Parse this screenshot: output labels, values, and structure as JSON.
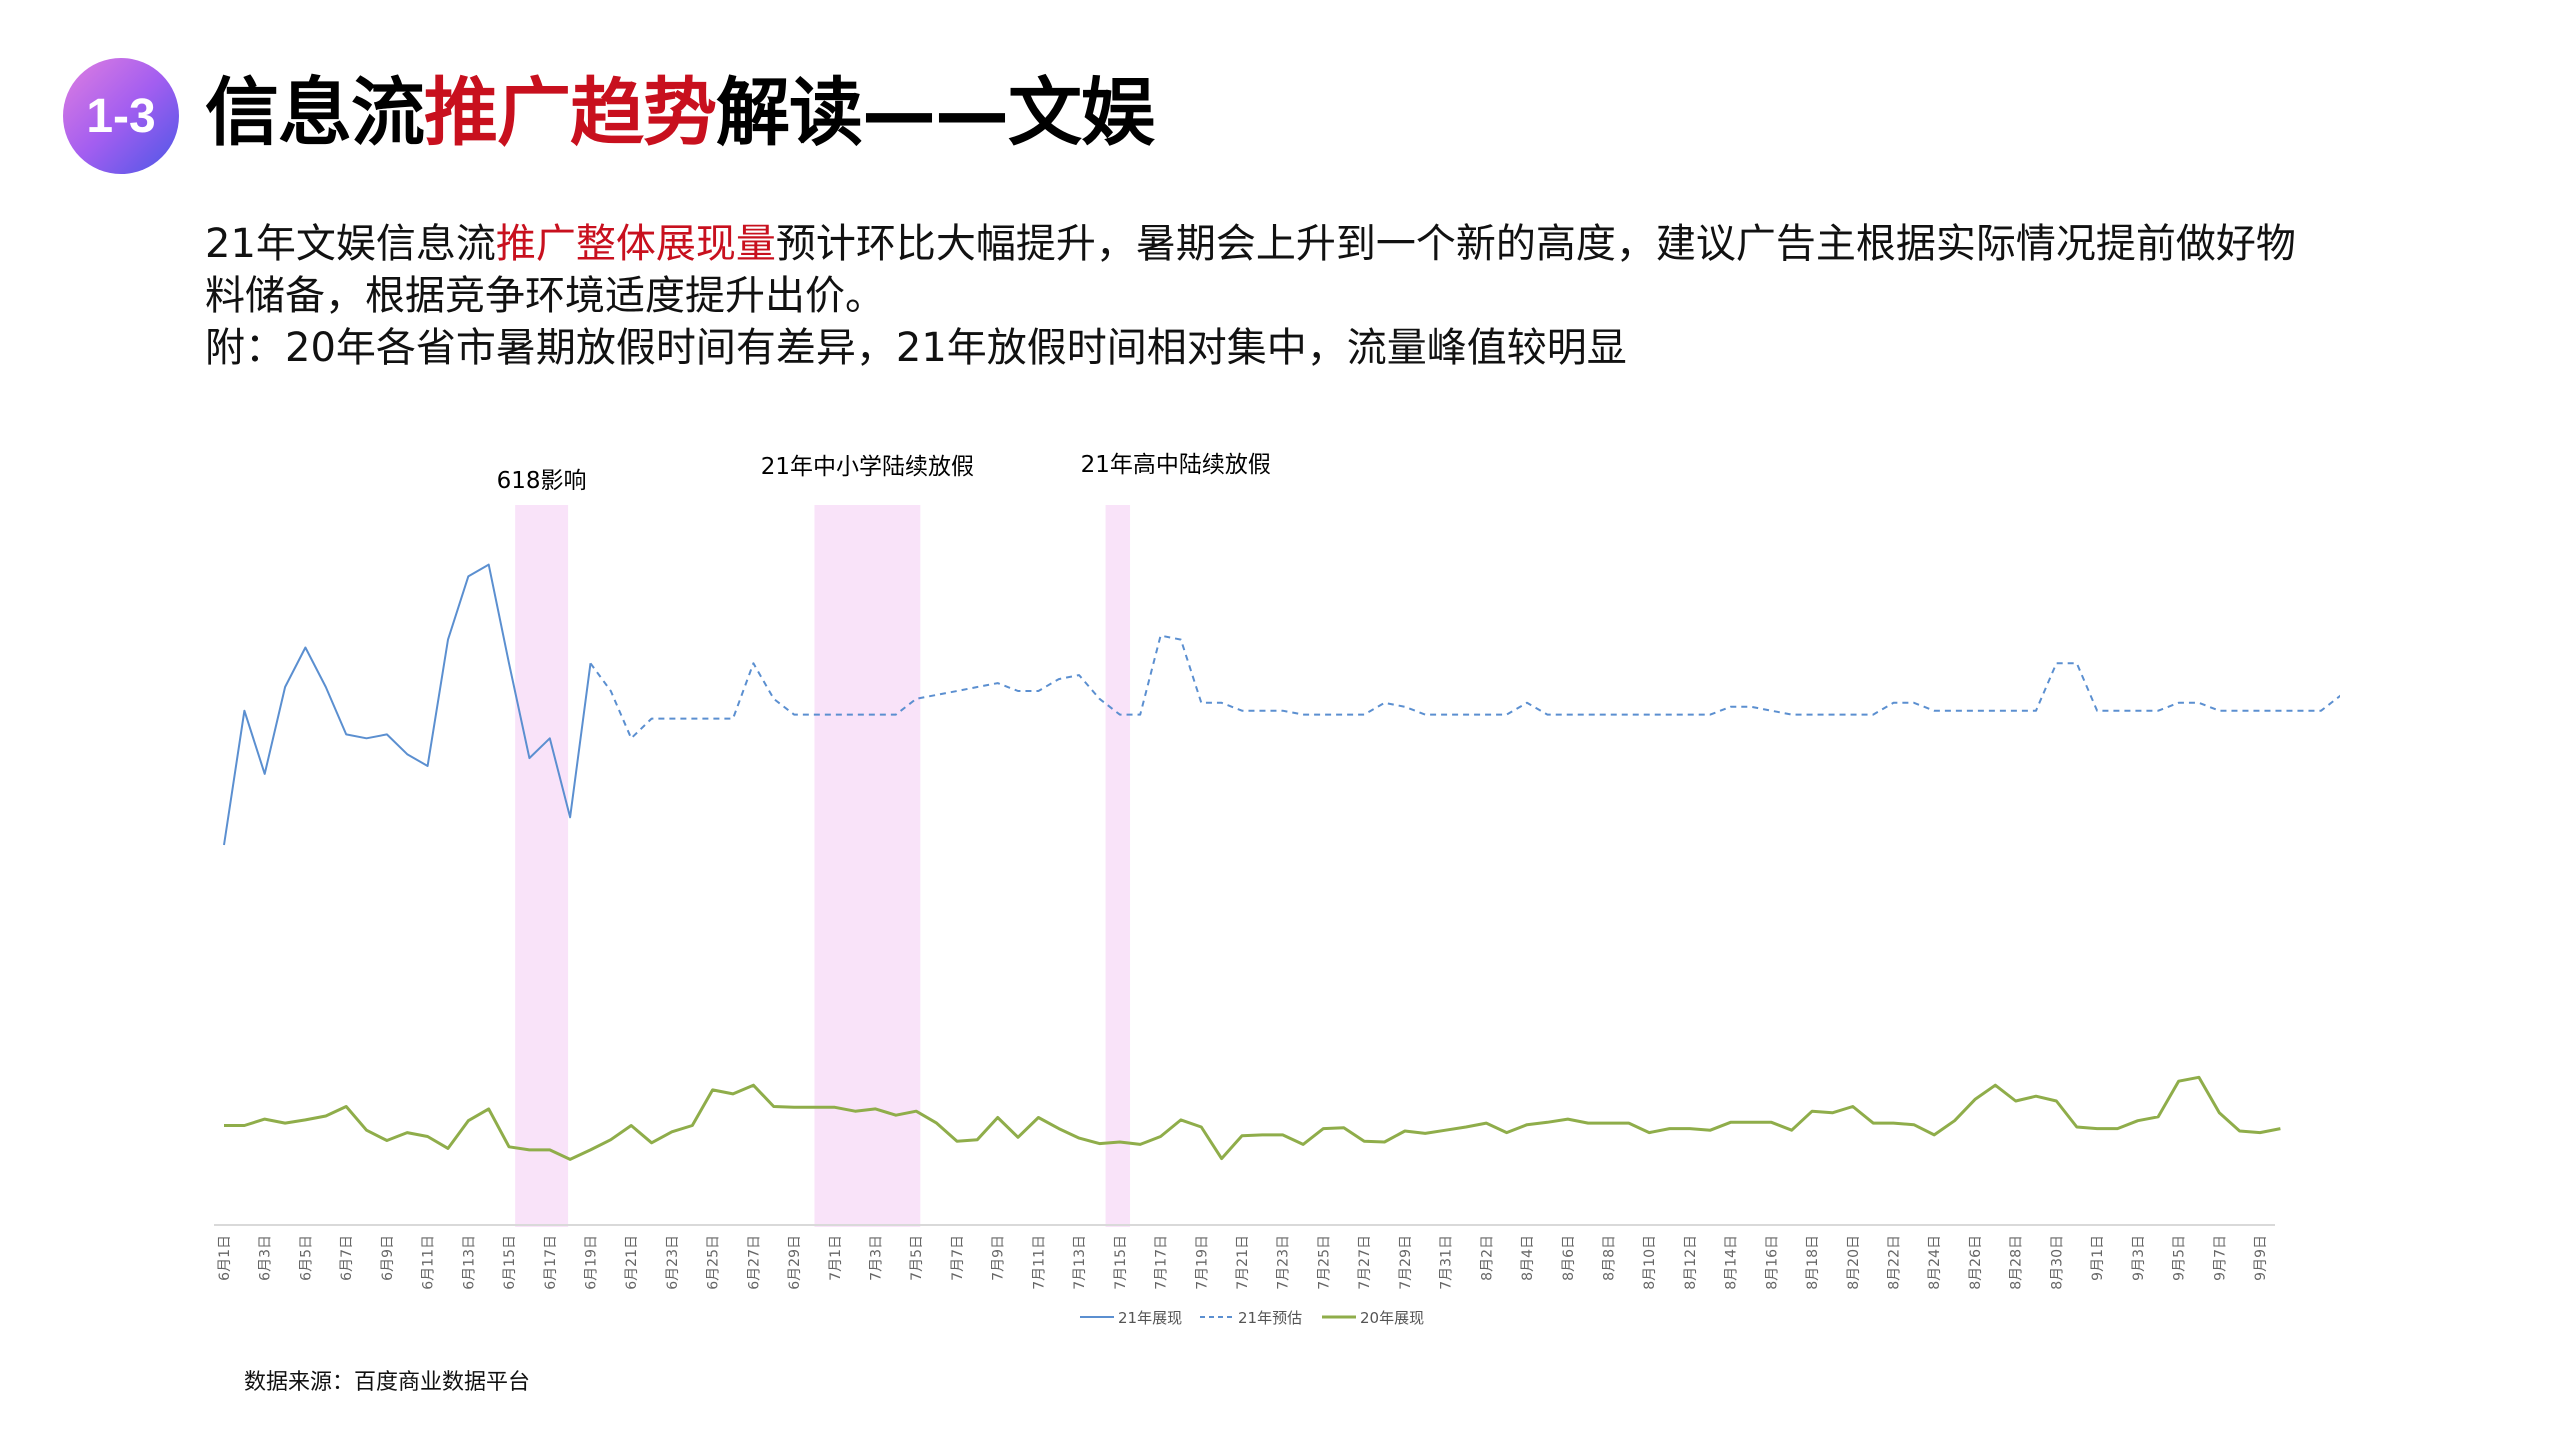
{
  "badge": "1-3",
  "title": {
    "part1": "信息流",
    "highlight": "推广趋势",
    "part2": "解读——文娱"
  },
  "description": {
    "line1_a": "21年文娱信息流",
    "line1_highlight": "推广整体展现量",
    "line1_b": "预计环比大幅提升，暑期会上升到一个新的高度，建议广告主根据实际情况提前做好物",
    "line2": "料储备，根据竞争环境适度提升出价。",
    "line3": "附：20年各省市暑期放假时间有差异，21年放假时间相对集中，流量峰值较明显"
  },
  "source": "数据来源：百度商业数据平台",
  "chart_data": {
    "type": "line",
    "x_ticks": [
      "6月1日",
      "6月3日",
      "6月5日",
      "6月7日",
      "6月9日",
      "6月11日",
      "6月13日",
      "6月15日",
      "6月17日",
      "6月19日",
      "6月21日",
      "6月23日",
      "6月25日",
      "6月27日",
      "6月29日",
      "7月1日",
      "7月3日",
      "7月5日",
      "7月7日",
      "7月9日",
      "7月11日",
      "7月13日",
      "7月15日",
      "7月17日",
      "7月19日",
      "7月21日",
      "7月23日",
      "7月25日",
      "7月27日",
      "7月29日",
      "7月31日",
      "8月2日",
      "8月4日",
      "8月6日",
      "8月8日",
      "8月10日",
      "8月12日",
      "8月14日",
      "8月16日",
      "8月18日",
      "8月20日",
      "8月22日",
      "8月24日",
      "8月26日",
      "8月28日",
      "8月30日",
      "9月1日",
      "9月3日",
      "9月5日",
      "9月7日",
      "9月9日"
    ],
    "ylim": [
      0,
      100
    ],
    "grid": false,
    "legend_position": "bottom",
    "annotations": [
      {
        "label": "618影响",
        "from_day": 15.3,
        "to_day": 17.9
      },
      {
        "label": "21年中小学陆续放假",
        "from_day": 30.0,
        "to_day": 35.2
      },
      {
        "label": "21年高中陆续放假",
        "from_day": 44.3,
        "to_day": 45.5
      }
    ],
    "series": [
      {
        "name": "21年展现",
        "color": "#5b8fd0",
        "style": "solid",
        "start_day": 1,
        "values": [
          50,
          67,
          59,
          70,
          75,
          70,
          64,
          63.5,
          64,
          61.5,
          60,
          76,
          84,
          85.5,
          73,
          61,
          63.5,
          53.5,
          73
        ]
      },
      {
        "name": "21年预估",
        "color": "#5b8fd0",
        "style": "dashed",
        "start_day": 19,
        "values": [
          73,
          69.5,
          63.5,
          66,
          66,
          66,
          66,
          66,
          73,
          68.5,
          66.5,
          66.5,
          66.5,
          66.5,
          66.5,
          66.5,
          68.5,
          69,
          69.5,
          70,
          70.5,
          69.5,
          69.5,
          71,
          71.5,
          68.5,
          66.5,
          66.5,
          76.5,
          76,
          68,
          68,
          67,
          67,
          67,
          66.5,
          66.5,
          66.5,
          66.5,
          68,
          67.5,
          66.5,
          66.5,
          66.5,
          66.5,
          66.5,
          68,
          66.5,
          66.5,
          66.5,
          66.5,
          66.5,
          66.5,
          66.5,
          66.5,
          66.5,
          67.5,
          67.5,
          67,
          66.5,
          66.5,
          66.5,
          66.5,
          66.5,
          68,
          68,
          67,
          67,
          67,
          67,
          67,
          67,
          73,
          73,
          67,
          67,
          67,
          67,
          68,
          68,
          67,
          67,
          67,
          67,
          67,
          67,
          69,
          73,
          76,
          73,
          67,
          66.5,
          66,
          66,
          68,
          69,
          66.5,
          66.5,
          66.5,
          66.5,
          67.5
        ]
      },
      {
        "name": "20年展现",
        "color": "#8fad4a",
        "style": "solid",
        "start_day": 1,
        "values": [
          14.5,
          14.5,
          15.3,
          14.8,
          15.2,
          15.7,
          16.9,
          13.9,
          12.6,
          13.6,
          13.1,
          11.6,
          15.1,
          16.6,
          11.8,
          11.4,
          11.4,
          10.2,
          11.4,
          12.7,
          14.5,
          12.3,
          13.7,
          14.5,
          19,
          18.5,
          19.6,
          16.9,
          16.8,
          16.8,
          16.8,
          16.3,
          16.6,
          15.8,
          16.3,
          14.8,
          12.5,
          12.7,
          15.5,
          13,
          15.5,
          14.1,
          12.9,
          12.2,
          12.4,
          12.1,
          13.1,
          15.2,
          14.3,
          10.3,
          13.2,
          13.3,
          13.3,
          12.1,
          14.1,
          14.2,
          12.5,
          12.4,
          13.8,
          13.5,
          13.9,
          14.3,
          14.8,
          13.6,
          14.6,
          14.9,
          15.3,
          14.8,
          14.8,
          14.8,
          13.6,
          14.1,
          14.1,
          13.9,
          14.9,
          14.9,
          14.9,
          13.9,
          16.3,
          16.1,
          16.9,
          14.8,
          14.8,
          14.6,
          13.3,
          15.1,
          17.8,
          19.6,
          17.6,
          18.2,
          17.6,
          14.3,
          14.1,
          14.1,
          15.1,
          15.6,
          20.1,
          20.6,
          16.1,
          13.8,
          13.6,
          14.1
        ]
      }
    ]
  }
}
